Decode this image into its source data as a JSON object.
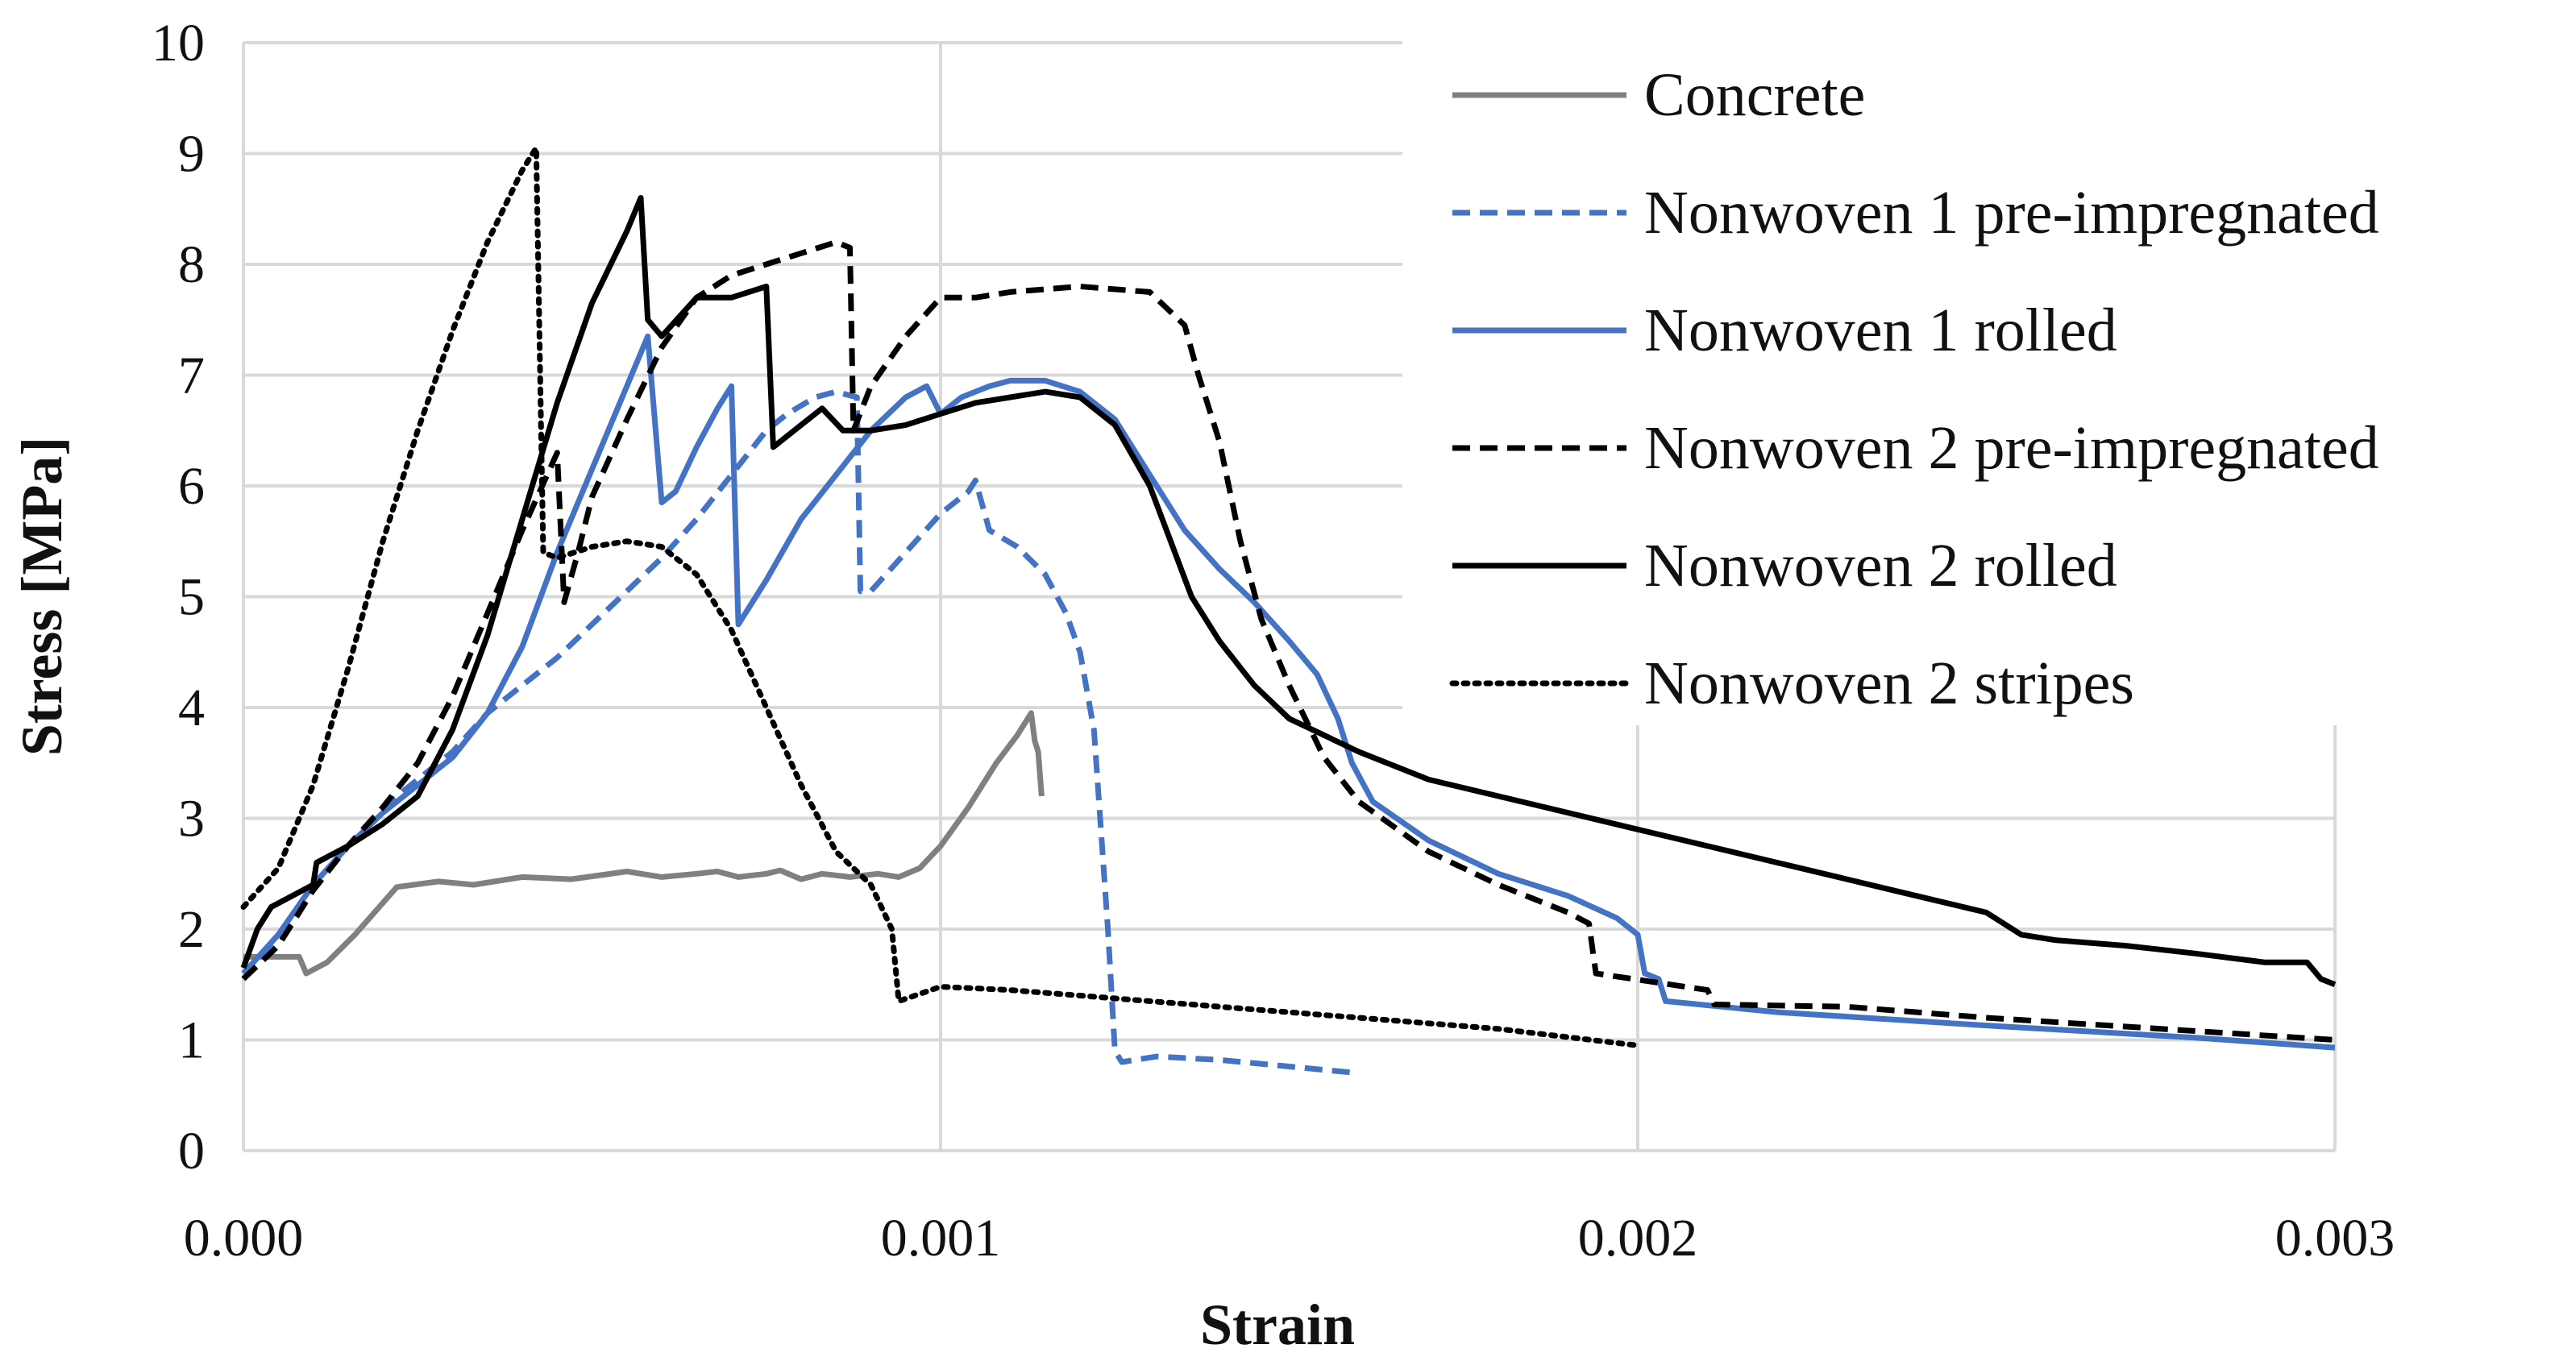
{
  "chart_data": {
    "type": "line",
    "title": "",
    "xlabel": "Strain",
    "ylabel": "Stress [MPa]",
    "xlim": [
      0,
      0.003
    ],
    "ylim": [
      0,
      10
    ],
    "grid": true,
    "legend_position": "top-right",
    "x_ticks": [
      "0.000",
      "0.001",
      "0.002",
      "0.003"
    ],
    "y_ticks": [
      "0",
      "1",
      "2",
      "3",
      "4",
      "5",
      "6",
      "7",
      "8",
      "9",
      "10"
    ],
    "series": [
      {
        "name": "Concrete",
        "color": "#808080",
        "dash": "solid",
        "points": [
          [
            0,
            1.75
          ],
          [
            8e-05,
            1.75
          ],
          [
            9e-05,
            1.6
          ],
          [
            0.00012,
            1.7
          ],
          [
            0.00016,
            1.95
          ],
          [
            0.00022,
            2.38
          ],
          [
            0.00028,
            2.43
          ],
          [
            0.00033,
            2.4
          ],
          [
            0.0004,
            2.47
          ],
          [
            0.00047,
            2.45
          ],
          [
            0.00055,
            2.52
          ],
          [
            0.0006,
            2.47
          ],
          [
            0.00065,
            2.5
          ],
          [
            0.00068,
            2.52
          ],
          [
            0.00071,
            2.47
          ],
          [
            0.00075,
            2.5
          ],
          [
            0.00077,
            2.53
          ],
          [
            0.0008,
            2.45
          ],
          [
            0.00083,
            2.5
          ],
          [
            0.00087,
            2.47
          ],
          [
            0.00091,
            2.5
          ],
          [
            0.00094,
            2.47
          ],
          [
            0.00097,
            2.55
          ],
          [
            0.001,
            2.75
          ],
          [
            0.00104,
            3.1
          ],
          [
            0.00108,
            3.5
          ],
          [
            0.00111,
            3.75
          ],
          [
            0.00113,
            3.95
          ],
          [
            0.001135,
            3.7
          ],
          [
            0.00114,
            3.6
          ],
          [
            0.001145,
            3.2
          ]
        ]
      },
      {
        "name": "Nonwoven 1 pre-impregnated",
        "color": "#4472c4",
        "dash": "dashed",
        "points": [
          [
            0,
            1.55
          ],
          [
            5e-05,
            1.9
          ],
          [
            0.0001,
            2.35
          ],
          [
            0.00015,
            2.75
          ],
          [
            0.0002,
            3.1
          ],
          [
            0.00025,
            3.35
          ],
          [
            0.0003,
            3.6
          ],
          [
            0.00035,
            3.95
          ],
          [
            0.0004,
            4.2
          ],
          [
            0.00045,
            4.45
          ],
          [
            0.0005,
            4.75
          ],
          [
            0.00055,
            5.05
          ],
          [
            0.0006,
            5.35
          ],
          [
            0.00065,
            5.7
          ],
          [
            0.0007,
            6.1
          ],
          [
            0.00075,
            6.5
          ],
          [
            0.00078,
            6.65
          ],
          [
            0.00082,
            6.8
          ],
          [
            0.00085,
            6.85
          ],
          [
            0.00088,
            6.8
          ],
          [
            0.000885,
            5.05
          ],
          [
            0.0009,
            5.05
          ],
          [
            0.00095,
            5.4
          ],
          [
            0.001,
            5.75
          ],
          [
            0.00104,
            5.95
          ],
          [
            0.00105,
            6.05
          ],
          [
            0.00107,
            5.6
          ],
          [
            0.00111,
            5.45
          ],
          [
            0.00115,
            5.2
          ],
          [
            0.00118,
            4.85
          ],
          [
            0.0012,
            4.5
          ],
          [
            0.00122,
            3.8
          ],
          [
            0.00124,
            2.0
          ],
          [
            0.00125,
            0.9
          ],
          [
            0.00126,
            0.8
          ],
          [
            0.00131,
            0.85
          ],
          [
            0.0014,
            0.82
          ],
          [
            0.0015,
            0.76
          ],
          [
            0.0016,
            0.7
          ]
        ]
      },
      {
        "name": "Nonwoven 1 rolled",
        "color": "#4472c4",
        "dash": "solid",
        "points": [
          [
            0,
            1.6
          ],
          [
            5e-05,
            1.95
          ],
          [
            0.0001,
            2.4
          ],
          [
            0.00015,
            2.75
          ],
          [
            0.0002,
            3.05
          ],
          [
            0.00025,
            3.3
          ],
          [
            0.0003,
            3.55
          ],
          [
            0.00035,
            3.95
          ],
          [
            0.0004,
            4.55
          ],
          [
            0.00045,
            5.4
          ],
          [
            0.0005,
            6.15
          ],
          [
            0.00055,
            6.9
          ],
          [
            0.00058,
            7.35
          ],
          [
            0.0006,
            5.85
          ],
          [
            0.00062,
            5.95
          ],
          [
            0.00065,
            6.35
          ],
          [
            0.00068,
            6.7
          ],
          [
            0.0007,
            6.9
          ],
          [
            0.00071,
            4.75
          ],
          [
            0.00075,
            5.15
          ],
          [
            0.0008,
            5.7
          ],
          [
            0.00085,
            6.1
          ],
          [
            0.0009,
            6.5
          ],
          [
            0.00095,
            6.8
          ],
          [
            0.00098,
            6.9
          ],
          [
            0.001,
            6.65
          ],
          [
            0.00103,
            6.8
          ],
          [
            0.00107,
            6.9
          ],
          [
            0.0011,
            6.95
          ],
          [
            0.00115,
            6.95
          ],
          [
            0.0012,
            6.85
          ],
          [
            0.00125,
            6.6
          ],
          [
            0.0013,
            6.1
          ],
          [
            0.00135,
            5.6
          ],
          [
            0.0014,
            5.25
          ],
          [
            0.00145,
            4.95
          ],
          [
            0.0015,
            4.6
          ],
          [
            0.00154,
            4.3
          ],
          [
            0.00157,
            3.9
          ],
          [
            0.00159,
            3.5
          ],
          [
            0.00162,
            3.15
          ],
          [
            0.0017,
            2.8
          ],
          [
            0.0018,
            2.5
          ],
          [
            0.0019,
            2.3
          ],
          [
            0.00197,
            2.1
          ],
          [
            0.002,
            1.95
          ],
          [
            0.00201,
            1.6
          ],
          [
            0.00203,
            1.55
          ],
          [
            0.00204,
            1.35
          ],
          [
            0.0022,
            1.25
          ],
          [
            0.0025,
            1.13
          ],
          [
            0.0028,
            1.02
          ],
          [
            0.003,
            0.93
          ]
        ]
      },
      {
        "name": "Nonwoven 2 pre-impregnated",
        "color": "#000000",
        "dash": "dashed",
        "points": [
          [
            0,
            1.55
          ],
          [
            5e-05,
            1.85
          ],
          [
            0.0001,
            2.35
          ],
          [
            0.00015,
            2.75
          ],
          [
            0.0002,
            3.1
          ],
          [
            0.00025,
            3.5
          ],
          [
            0.0003,
            4.1
          ],
          [
            0.00035,
            4.85
          ],
          [
            0.0004,
            5.6
          ],
          [
            0.00045,
            6.3
          ],
          [
            0.00046,
            4.95
          ],
          [
            0.00048,
            5.4
          ],
          [
            0.0005,
            5.9
          ],
          [
            0.00055,
            6.6
          ],
          [
            0.0006,
            7.25
          ],
          [
            0.00065,
            7.7
          ],
          [
            0.0007,
            7.9
          ],
          [
            0.00075,
            8.0
          ],
          [
            0.0008,
            8.1
          ],
          [
            0.00085,
            8.2
          ],
          [
            0.00087,
            8.15
          ],
          [
            0.000875,
            6.5
          ],
          [
            0.0009,
            6.9
          ],
          [
            0.00095,
            7.35
          ],
          [
            0.001,
            7.7
          ],
          [
            0.00105,
            7.7
          ],
          [
            0.0011,
            7.75
          ],
          [
            0.0012,
            7.8
          ],
          [
            0.0013,
            7.75
          ],
          [
            0.00135,
            7.45
          ],
          [
            0.00137,
            7.0
          ],
          [
            0.0014,
            6.4
          ],
          [
            0.00143,
            5.5
          ],
          [
            0.00146,
            4.8
          ],
          [
            0.0015,
            4.2
          ],
          [
            0.00155,
            3.55
          ],
          [
            0.0016,
            3.15
          ],
          [
            0.0017,
            2.7
          ],
          [
            0.0018,
            2.4
          ],
          [
            0.0019,
            2.15
          ],
          [
            0.00193,
            2.05
          ],
          [
            0.00194,
            1.6
          ],
          [
            0.0021,
            1.45
          ],
          [
            0.00211,
            1.32
          ],
          [
            0.0023,
            1.3
          ],
          [
            0.0025,
            1.2
          ],
          [
            0.0027,
            1.12
          ],
          [
            0.003,
            1.0
          ]
        ]
      },
      {
        "name": "Nonwoven 2 rolled",
        "color": "#000000",
        "dash": "solid",
        "points": [
          [
            0,
            1.65
          ],
          [
            2e-05,
            2.0
          ],
          [
            4e-05,
            2.2
          ],
          [
            0.0001,
            2.4
          ],
          [
            0.000105,
            2.6
          ],
          [
            0.00015,
            2.75
          ],
          [
            0.0002,
            2.95
          ],
          [
            0.00025,
            3.2
          ],
          [
            0.0003,
            3.8
          ],
          [
            0.00035,
            4.65
          ],
          [
            0.0004,
            5.7
          ],
          [
            0.00045,
            6.75
          ],
          [
            0.0005,
            7.65
          ],
          [
            0.00055,
            8.3
          ],
          [
            0.00057,
            8.6
          ],
          [
            0.00058,
            7.5
          ],
          [
            0.0006,
            7.35
          ],
          [
            0.00065,
            7.7
          ],
          [
            0.0007,
            7.7
          ],
          [
            0.00075,
            7.8
          ],
          [
            0.00076,
            6.35
          ],
          [
            0.0008,
            6.55
          ],
          [
            0.00083,
            6.7
          ],
          [
            0.00086,
            6.5
          ],
          [
            0.0009,
            6.5
          ],
          [
            0.00095,
            6.55
          ],
          [
            0.001,
            6.65
          ],
          [
            0.00105,
            6.75
          ],
          [
            0.0011,
            6.8
          ],
          [
            0.00115,
            6.85
          ],
          [
            0.0012,
            6.8
          ],
          [
            0.00125,
            6.55
          ],
          [
            0.0013,
            6.0
          ],
          [
            0.00133,
            5.5
          ],
          [
            0.00136,
            5.0
          ],
          [
            0.0014,
            4.6
          ],
          [
            0.00145,
            4.2
          ],
          [
            0.0015,
            3.9
          ],
          [
            0.0016,
            3.6
          ],
          [
            0.0017,
            3.35
          ],
          [
            0.0018,
            3.2
          ],
          [
            0.0019,
            3.05
          ],
          [
            0.002,
            2.9
          ],
          [
            0.0021,
            2.75
          ],
          [
            0.0022,
            2.6
          ],
          [
            0.0023,
            2.45
          ],
          [
            0.0024,
            2.3
          ],
          [
            0.0025,
            2.15
          ],
          [
            0.00255,
            1.95
          ],
          [
            0.0026,
            1.9
          ],
          [
            0.0027,
            1.85
          ],
          [
            0.0028,
            1.78
          ],
          [
            0.0029,
            1.7
          ],
          [
            0.00296,
            1.7
          ],
          [
            0.00298,
            1.55
          ],
          [
            0.003,
            1.5
          ]
        ]
      },
      {
        "name": "Nonwoven 2 stripes",
        "color": "#000000",
        "dash": "dotted",
        "points": [
          [
            0,
            2.2
          ],
          [
            5e-05,
            2.55
          ],
          [
            0.0001,
            3.3
          ],
          [
            0.00015,
            4.35
          ],
          [
            0.0002,
            5.5
          ],
          [
            0.00025,
            6.5
          ],
          [
            0.0003,
            7.4
          ],
          [
            0.00035,
            8.2
          ],
          [
            0.0004,
            8.85
          ],
          [
            0.00042,
            9.05
          ],
          [
            0.00043,
            5.4
          ],
          [
            0.00045,
            5.35
          ],
          [
            0.0005,
            5.45
          ],
          [
            0.00055,
            5.5
          ],
          [
            0.0006,
            5.45
          ],
          [
            0.00065,
            5.2
          ],
          [
            0.0007,
            4.7
          ],
          [
            0.00075,
            4.0
          ],
          [
            0.0008,
            3.3
          ],
          [
            0.00085,
            2.7
          ],
          [
            0.0009,
            2.4
          ],
          [
            0.00093,
            2.0
          ],
          [
            0.00094,
            1.35
          ],
          [
            0.001,
            1.48
          ],
          [
            0.0011,
            1.45
          ],
          [
            0.0012,
            1.4
          ],
          [
            0.0014,
            1.3
          ],
          [
            0.0016,
            1.2
          ],
          [
            0.0018,
            1.1
          ],
          [
            0.002,
            0.95
          ]
        ]
      }
    ]
  }
}
